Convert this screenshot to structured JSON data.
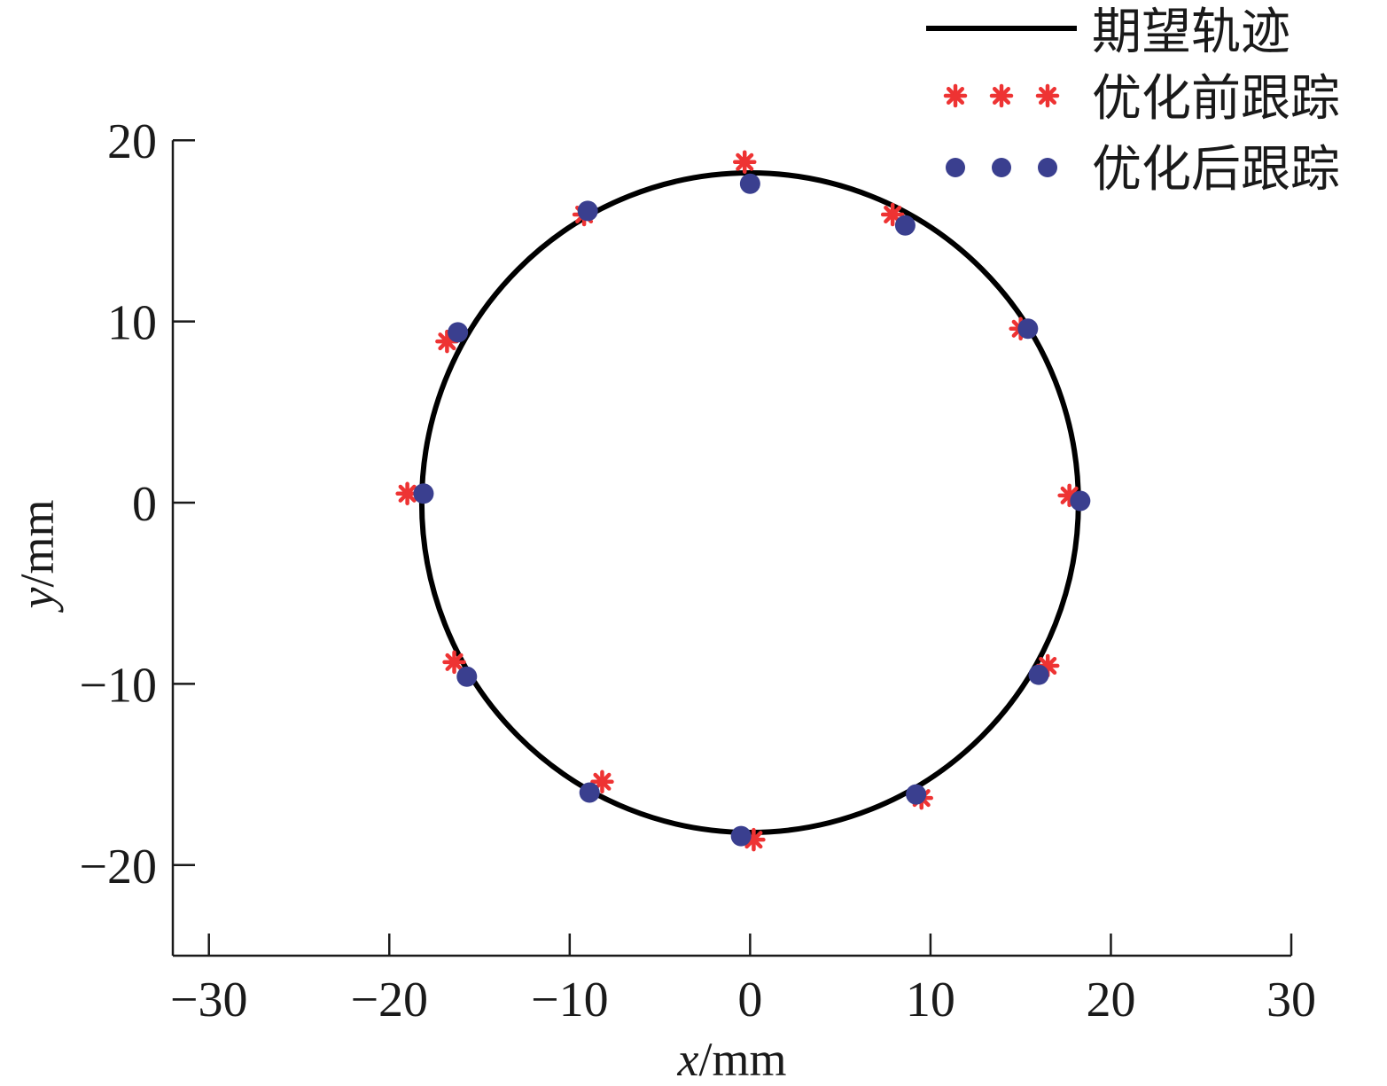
{
  "chart_data": {
    "type": "scatter",
    "xlabel": {
      "var": "x",
      "unit": "/mm"
    },
    "ylabel": {
      "var": "y",
      "unit": "/mm"
    },
    "xlim": [
      -32,
      30
    ],
    "ylim": [
      -25,
      20.5
    ],
    "xticks": [
      -30,
      -20,
      -10,
      0,
      10,
      20,
      30
    ],
    "yticks": [
      -20,
      -10,
      0,
      10,
      20
    ],
    "xtick_labels": [
      "−30",
      "−20",
      "−10",
      "0",
      "10",
      "20",
      "30"
    ],
    "ytick_labels": [
      "−20",
      "−10",
      "0",
      "10",
      "20"
    ],
    "grid": false,
    "legend_position": "top-right",
    "colors": {
      "desired": "#000000",
      "before": "#ee3333",
      "after": "#3a3f8f"
    },
    "series": [
      {
        "name": "期望轨迹",
        "kind": "circle",
        "center": [
          0,
          0
        ],
        "radius": 18.2
      },
      {
        "name": "优化前跟踪",
        "marker": "asterisk",
        "x": [
          -0.3,
          7.9,
          15.0,
          17.7,
          16.5,
          9.5,
          0.2,
          -8.2,
          -16.4,
          -19.0,
          -16.8,
          -9.2
        ],
        "y": [
          18.8,
          15.9,
          9.6,
          0.4,
          -9.0,
          -16.3,
          -18.6,
          -15.4,
          -8.8,
          0.5,
          8.9,
          15.9
        ]
      },
      {
        "name": "优化后跟踪",
        "marker": "dot",
        "x": [
          0.0,
          8.6,
          15.4,
          18.3,
          16.0,
          9.2,
          -0.5,
          -8.9,
          -15.7,
          -18.1,
          -16.2,
          -9.0
        ],
        "y": [
          17.6,
          15.3,
          9.6,
          0.1,
          -9.5,
          -16.1,
          -18.4,
          -16.0,
          -9.6,
          0.5,
          9.4,
          16.1
        ]
      }
    ]
  }
}
